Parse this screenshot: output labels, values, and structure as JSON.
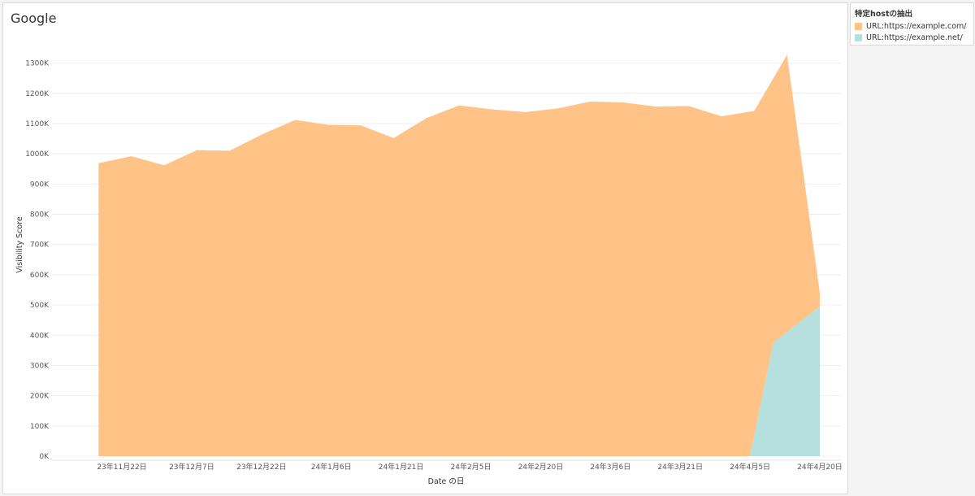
{
  "chart_data": {
    "type": "area",
    "title": "Google",
    "xlabel": "Date の日",
    "ylabel": "Visibility Score",
    "ylim": [
      0,
      1350000
    ],
    "y_ticks": [
      0,
      100000,
      200000,
      300000,
      400000,
      500000,
      600000,
      700000,
      800000,
      900000,
      1000000,
      1100000,
      1200000,
      1300000
    ],
    "y_tick_labels": [
      "0K",
      "100K",
      "200K",
      "300K",
      "400K",
      "500K",
      "600K",
      "700K",
      "800K",
      "900K",
      "1000K",
      "1100K",
      "1200K",
      "1300K"
    ],
    "x_tick_labels": [
      "23年11月22日",
      "23年12月7日",
      "23年12月22日",
      "24年1月6日",
      "24年1月21日",
      "24年2月5日",
      "24年2月20日",
      "24年3月6日",
      "24年3月21日",
      "24年4月5日",
      "24年4月20日"
    ],
    "x": [
      "2023-11-17",
      "2023-11-22",
      "2023-11-27",
      "2023-12-02",
      "2023-12-07",
      "2023-12-12",
      "2023-12-17",
      "2023-12-22",
      "2023-12-27",
      "2024-01-01",
      "2024-01-06",
      "2024-01-11",
      "2024-01-16",
      "2024-01-21",
      "2024-01-26",
      "2024-01-31",
      "2024-02-05",
      "2024-02-10",
      "2024-02-15",
      "2024-02-20",
      "2024-02-25",
      "2024-03-01",
      "2024-03-06",
      "2024-03-11",
      "2024-03-16",
      "2024-03-21",
      "2024-03-26",
      "2024-03-31",
      "2024-04-05",
      "2024-04-10",
      "2024-04-15",
      "2024-04-20"
    ],
    "stacked": true,
    "legend_title": "特定hostの抽出",
    "legend_position": "right",
    "grid": true,
    "series": [
      {
        "name": "URL:https://example.com/",
        "color": "#FFC387",
        "values": [
          969000,
          992000,
          962000,
          1012000,
          1010000,
          1065000,
          1112000,
          1096000,
          1094000,
          1052000,
          1118000,
          1160000,
          1147000,
          1138000,
          1150000,
          1173000,
          1170000,
          1156000,
          1158000,
          1124000,
          1142000,
          1327000,
          640000,
          0,
          0,
          0,
          0,
          0,
          0,
          0,
          0,
          0
        ]
      }
    ]
  },
  "legend": {
    "title": "特定hostの抽出",
    "items": [
      {
        "label": "URL:https://example.com/",
        "color": "#FFC387"
      },
      {
        "label": "URL:https://example.net/",
        "color": "#B5E0DD"
      }
    ]
  }
}
